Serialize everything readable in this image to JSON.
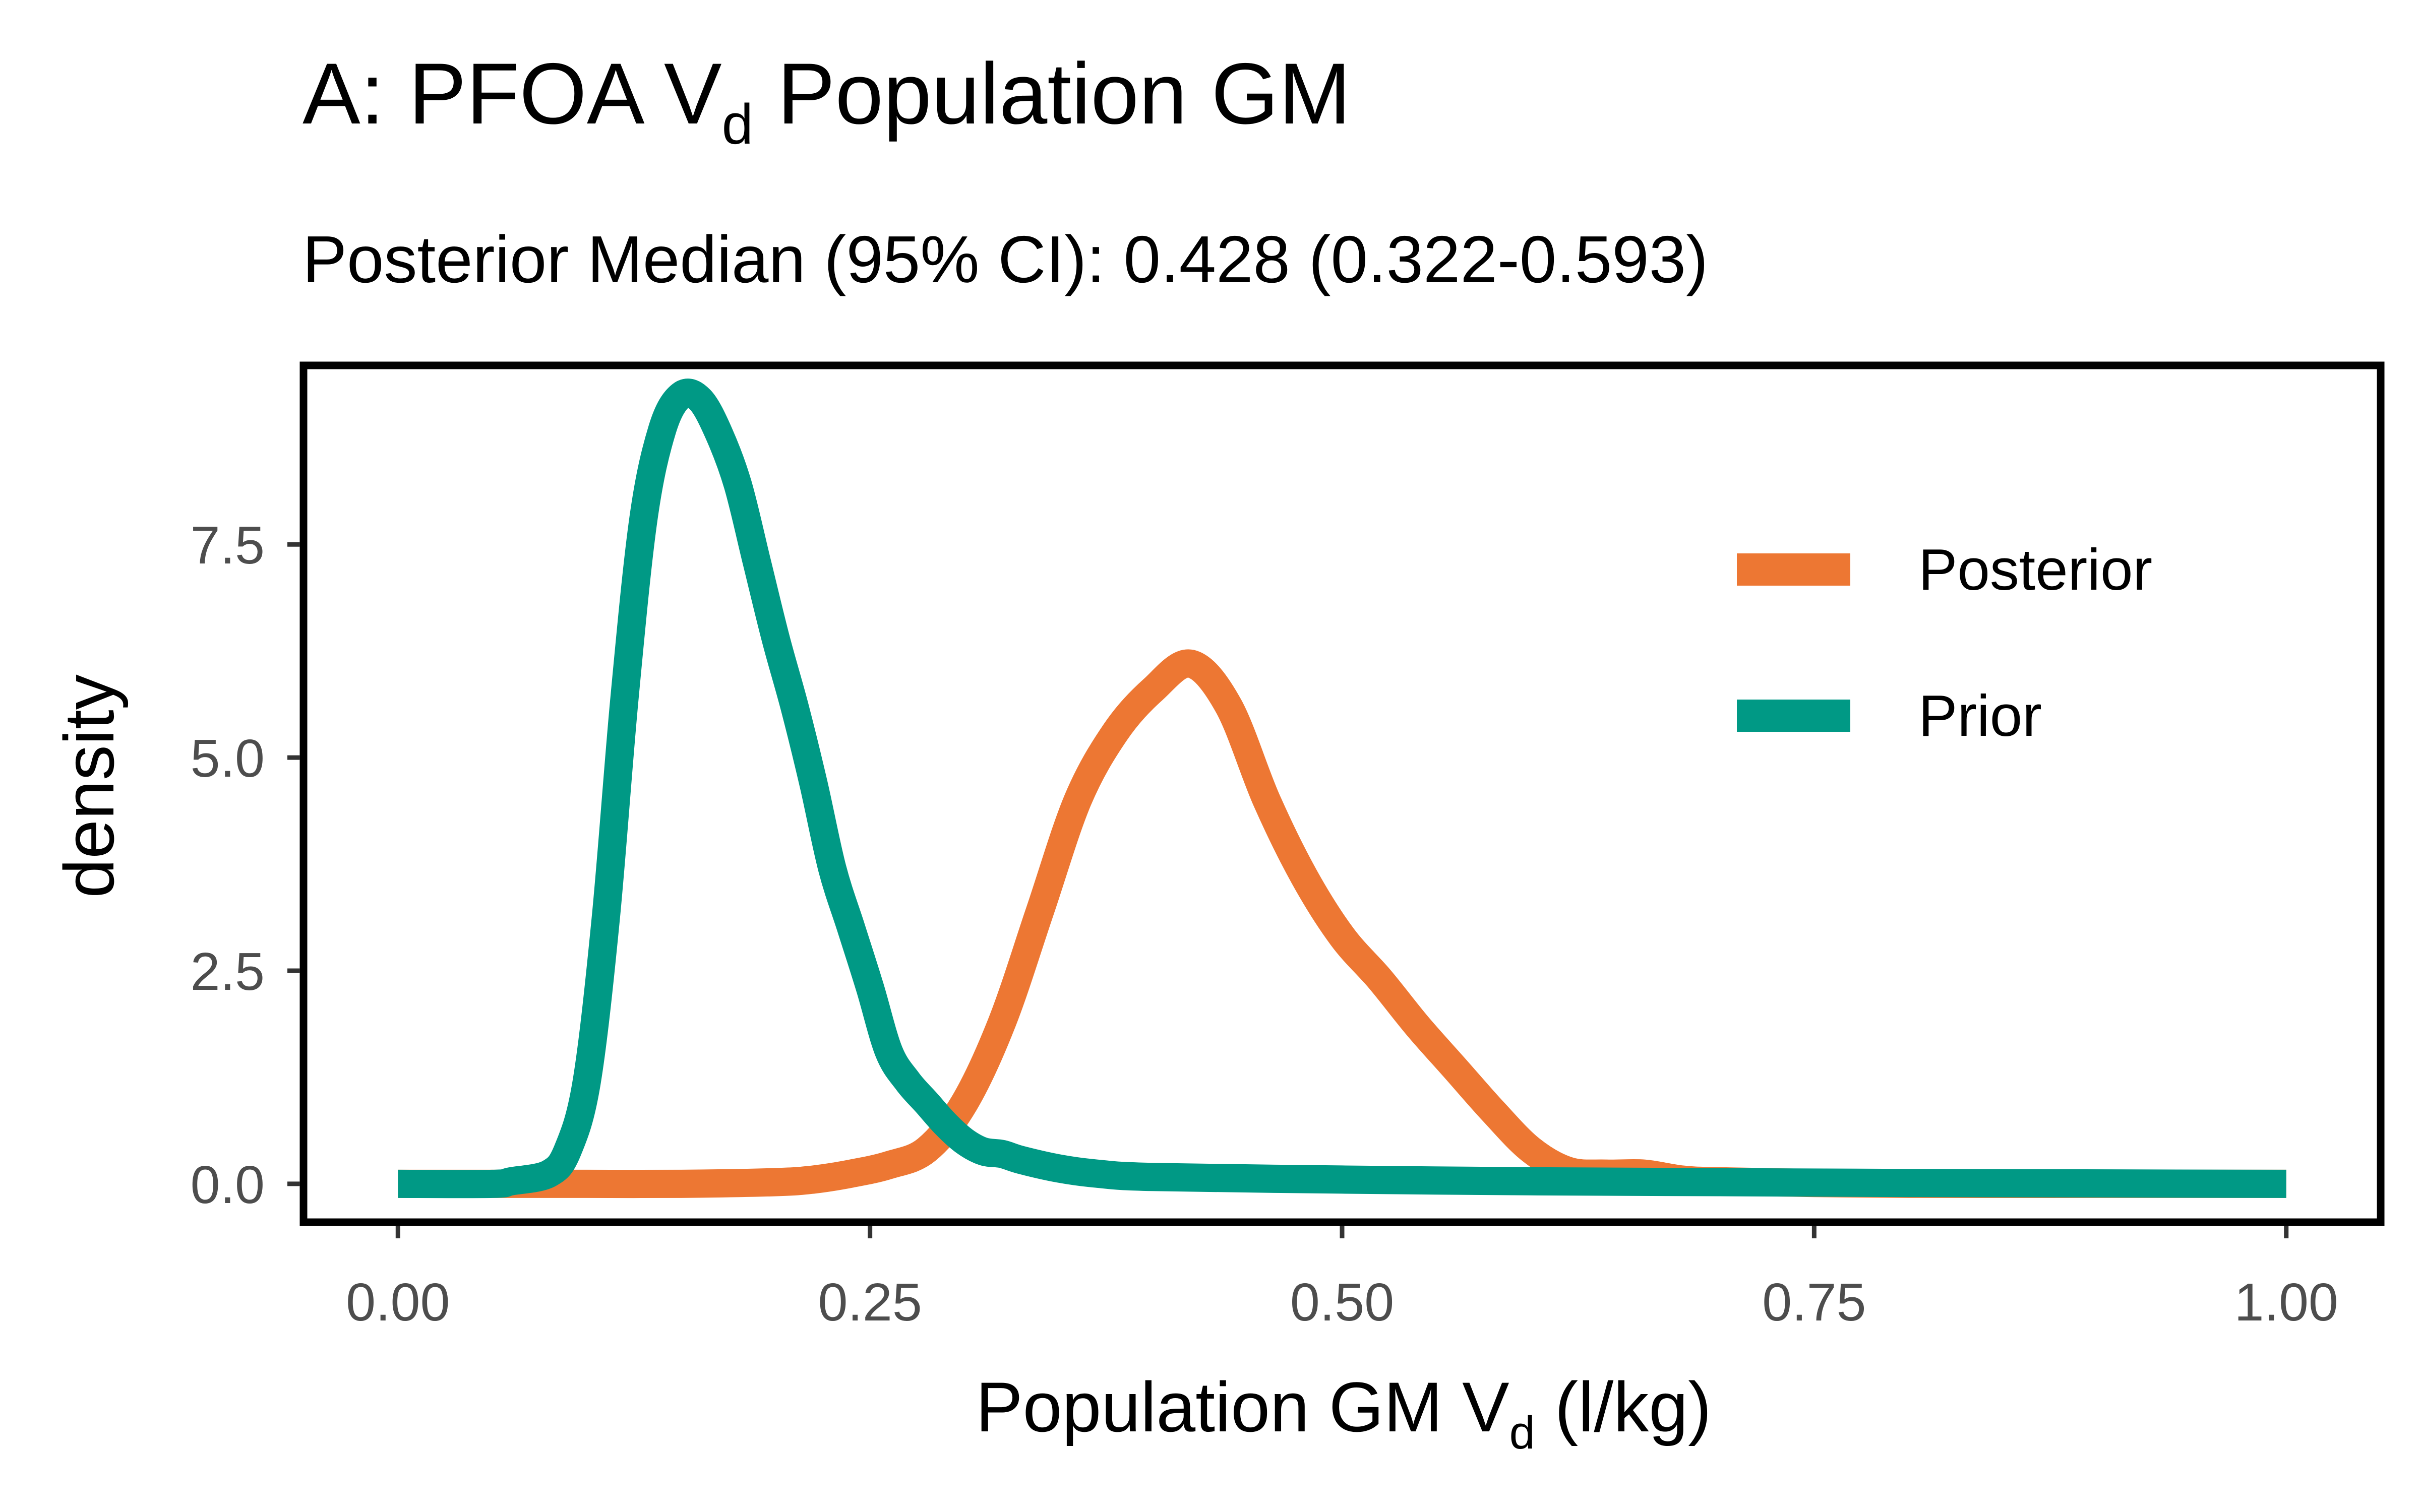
{
  "chart_data": {
    "type": "line",
    "title": {
      "prefix": "A: PFOA V",
      "subscript": "d",
      "suffix": " Population GM"
    },
    "subtitle": "Posterior Median (95% CI): 0.428 (0.322-0.593)",
    "xlabel": {
      "prefix": "Population GM V",
      "subscript": "d",
      "suffix": " (l/kg)"
    },
    "ylabel": "density",
    "xlim": [
      -0.05,
      1.05
    ],
    "ylim": [
      -0.45,
      9.6
    ],
    "x_ticks": [
      0,
      0.25,
      0.5,
      0.75,
      1
    ],
    "x_tick_labels": [
      "0.00",
      "0.25",
      "0.50",
      "0.75",
      "1.00"
    ],
    "y_ticks": [
      0,
      2.5,
      5,
      7.5
    ],
    "y_tick_labels": [
      "0.0",
      "2.5",
      "5.0",
      "7.5"
    ],
    "grid": false,
    "legend_position": "top-right",
    "series": [
      {
        "name": "Posterior",
        "color": "#ED7733",
        "x": [
          0.0,
          0.05,
          0.1,
          0.15,
          0.2,
          0.22,
          0.24,
          0.26,
          0.28,
          0.3,
          0.32,
          0.34,
          0.36,
          0.38,
          0.4,
          0.42,
          0.44,
          0.46,
          0.48,
          0.5,
          0.52,
          0.54,
          0.56,
          0.58,
          0.6,
          0.62,
          0.64,
          0.66,
          0.68,
          0.7,
          0.75,
          0.8,
          0.9,
          1.0
        ],
        "y": [
          0.0,
          0.0,
          0.0,
          0.0,
          0.02,
          0.05,
          0.12,
          0.22,
          0.4,
          0.95,
          1.9,
          3.2,
          4.5,
          5.3,
          5.8,
          6.1,
          5.6,
          4.5,
          3.6,
          2.9,
          2.4,
          1.85,
          1.35,
          0.85,
          0.4,
          0.15,
          0.12,
          0.12,
          0.05,
          0.03,
          0.01,
          0.0,
          0.0,
          0.0
        ]
      },
      {
        "name": "Prior",
        "color": "#009985",
        "x": [
          0.0,
          0.05,
          0.06,
          0.08,
          0.09,
          0.1,
          0.11,
          0.12,
          0.13,
          0.14,
          0.15,
          0.16,
          0.17,
          0.18,
          0.19,
          0.2,
          0.21,
          0.22,
          0.23,
          0.24,
          0.25,
          0.26,
          0.27,
          0.28,
          0.29,
          0.3,
          0.31,
          0.32,
          0.33,
          0.35,
          0.37,
          0.4,
          0.5,
          0.6,
          0.7,
          0.8,
          1.0
        ],
        "y": [
          0.0,
          0.0,
          0.03,
          0.12,
          0.4,
          1.2,
          3.1,
          5.7,
          7.8,
          8.85,
          9.25,
          9.2,
          8.8,
          8.2,
          7.3,
          6.4,
          5.6,
          4.7,
          3.7,
          3.0,
          2.3,
          1.55,
          1.2,
          0.95,
          0.7,
          0.5,
          0.38,
          0.35,
          0.28,
          0.18,
          0.12,
          0.08,
          0.05,
          0.03,
          0.02,
          0.01,
          0.0
        ]
      }
    ]
  }
}
